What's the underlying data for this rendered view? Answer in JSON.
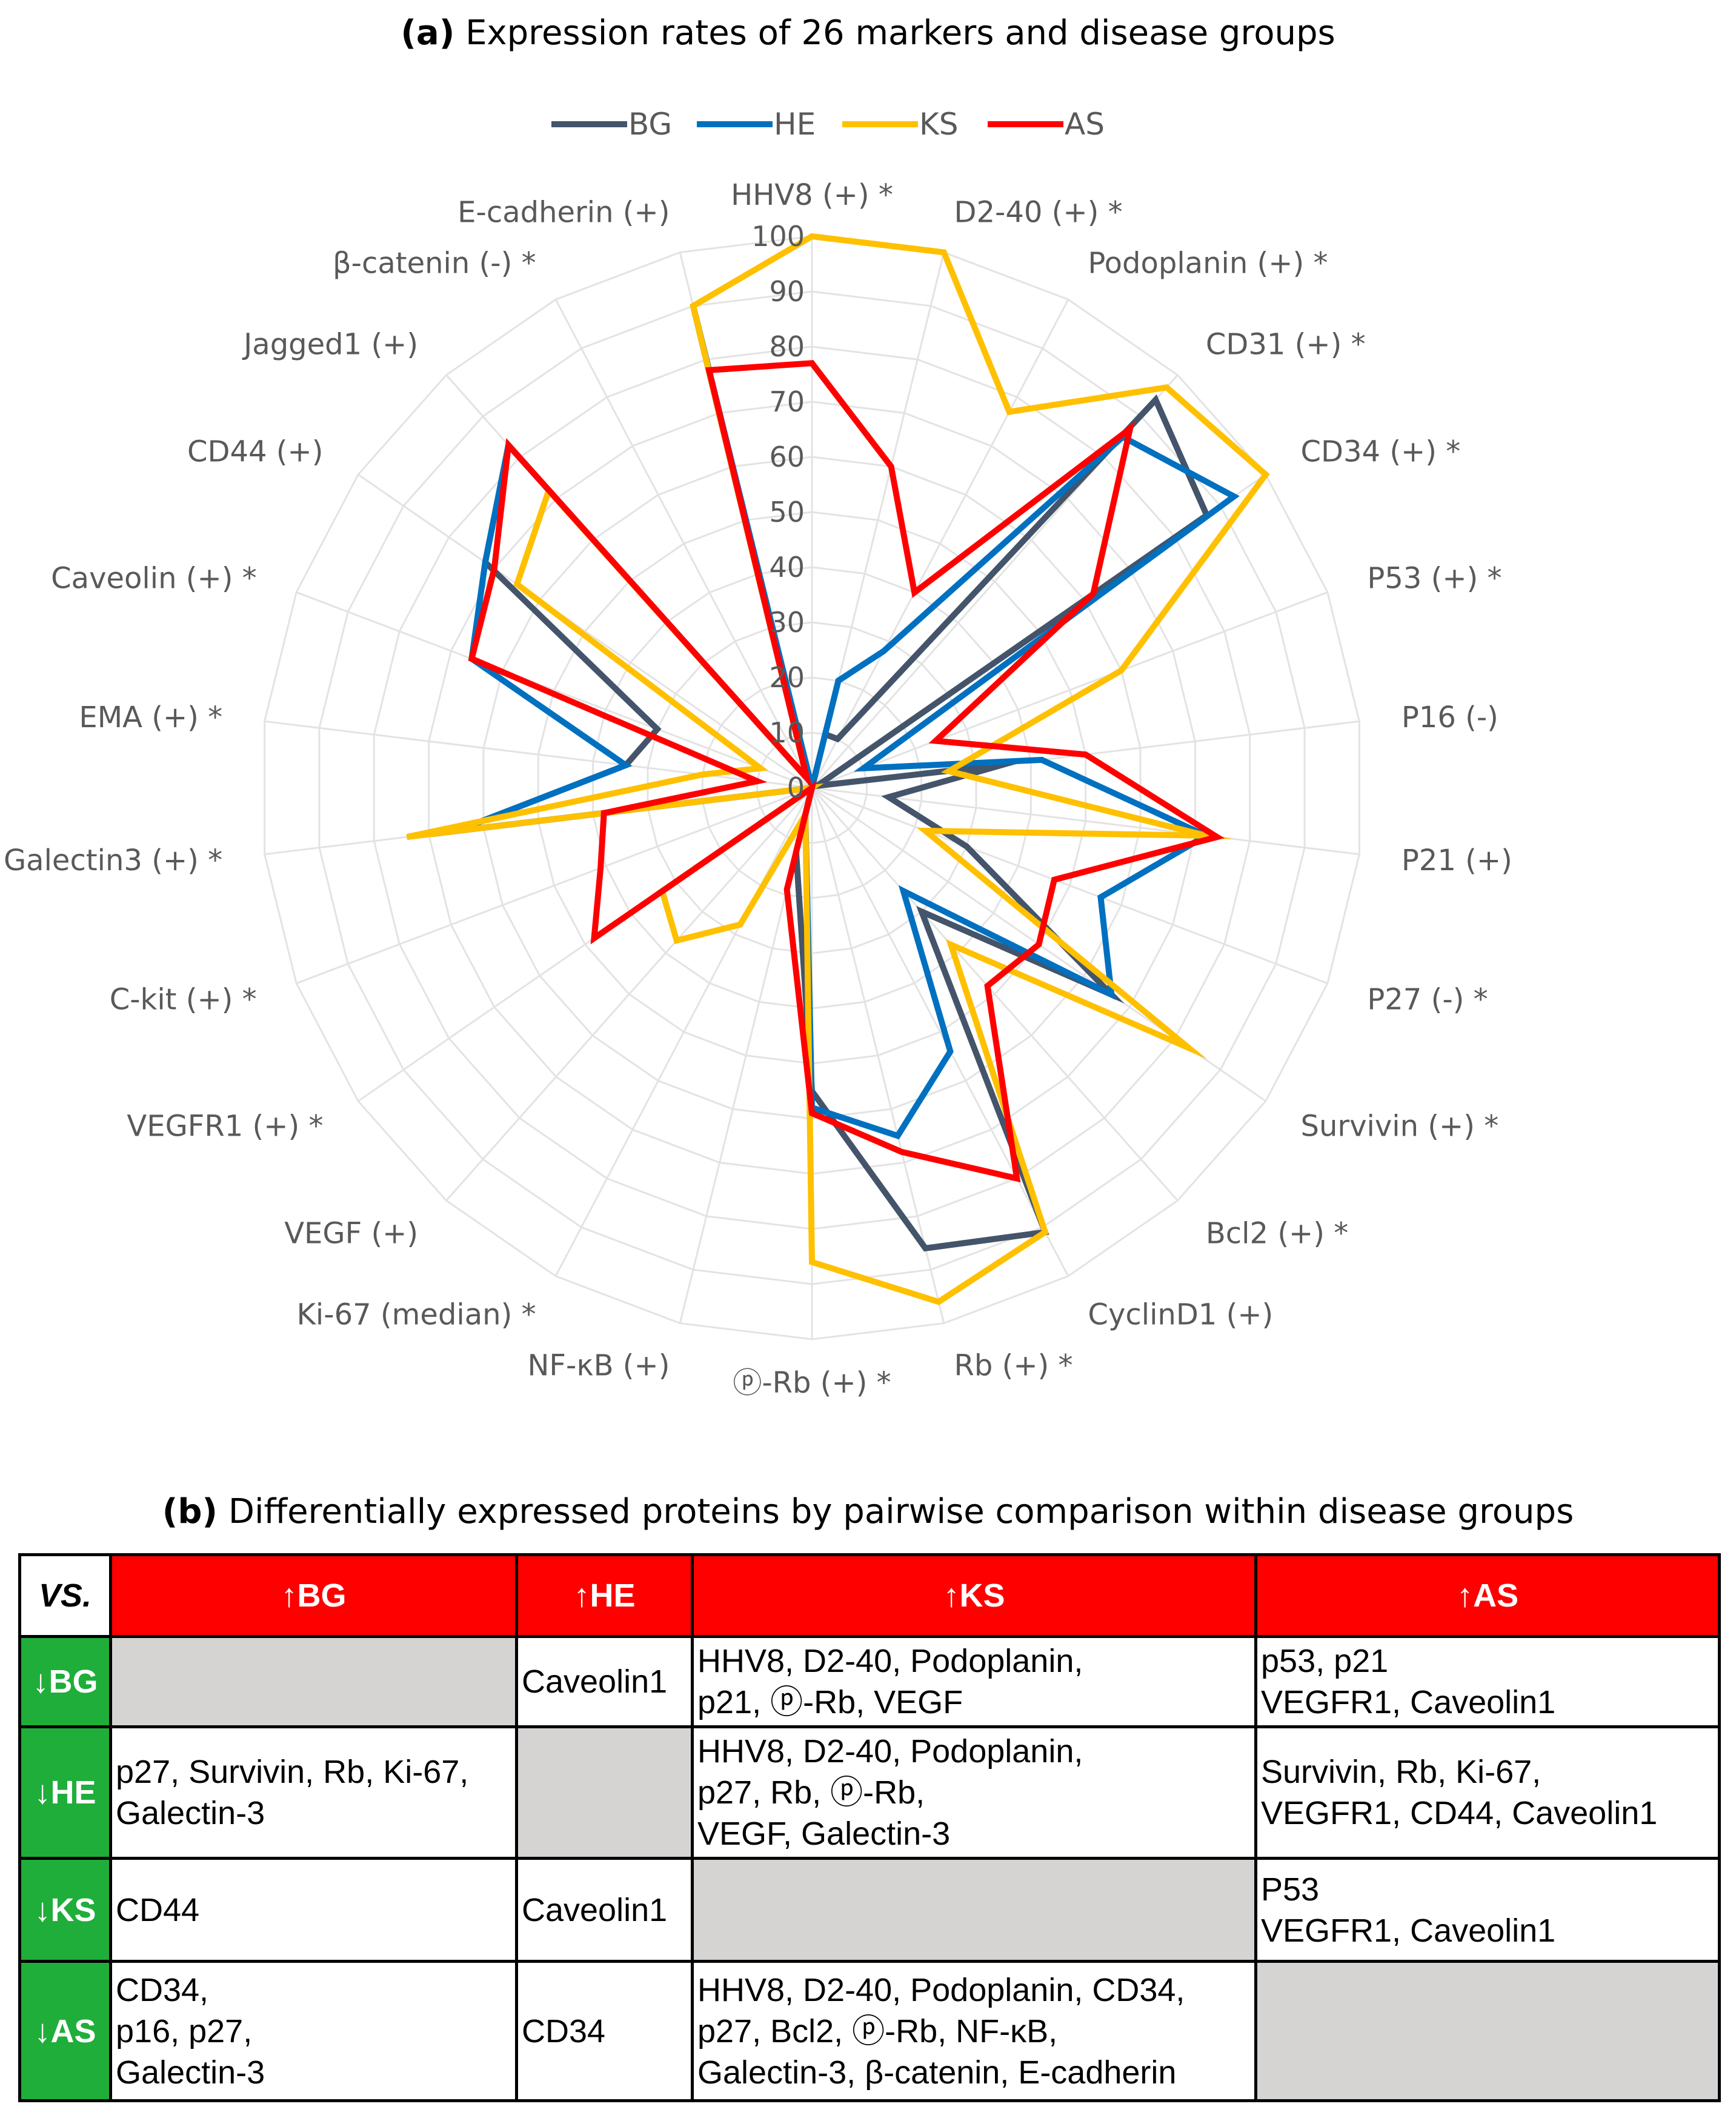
{
  "title_a": {
    "prefix": "(a)",
    "text": "Expression rates of 26 markers and disease groups"
  },
  "title_b": {
    "prefix": "(b)",
    "text": "Differentially expressed proteins by pairwise comparison within disease groups"
  },
  "chart_data": {
    "type": "radar",
    "title": "(a) Expression rates of 26 markers and disease groups",
    "categories": [
      "HHV8 (+) *",
      "D2-40 (+) *",
      "Podoplanin (+) *",
      "CD31 (+) *",
      "CD34 (+) *",
      "P53 (+) *",
      "P16 (-)",
      "P21 (+)",
      "P27 (-) *",
      "Survivin (+) *",
      "Bcl2 (+) *",
      "CyclinD1 (+)",
      "Rb (+) *",
      "ⓟ-Rb (+) *",
      "NF-κB (+)",
      "Ki-67 (median) *",
      "VEGF (+)",
      "VEGFR1 (+) *",
      "C-kit (+) *",
      "Galectin3 (+) *",
      "EMA (+) *",
      "Caveolin (+) *",
      "CD44 (+)",
      "Jagged1 (+)",
      "β-catenin (-) *",
      "E-cadherin (+)"
    ],
    "rlim": [
      0,
      100
    ],
    "rticks": [
      "0",
      "10",
      "20",
      "30",
      "40",
      "50",
      "60",
      "70",
      "80",
      "90",
      "100"
    ],
    "legend_position": "top",
    "grid": true,
    "series": [
      {
        "name": "BG",
        "color": "#44546a",
        "values": [
          0,
          10,
          10,
          94,
          87,
          1,
          35,
          14,
          30,
          66,
          30,
          91,
          86,
          55,
          12,
          0,
          0,
          34,
          0,
          65,
          34,
          30,
          72,
          83,
          2,
          90
        ]
      },
      {
        "name": "HE",
        "color": "#0070c0",
        "values": [
          0,
          20,
          28,
          85,
          93,
          10,
          42,
          72,
          56,
          66,
          25,
          54,
          65,
          58,
          5,
          0,
          0,
          24,
          0,
          65,
          34,
          66,
          72,
          83,
          2,
          90
        ]
      },
      {
        "name": "KS",
        "color": "#ffc000",
        "values": [
          100,
          100,
          77,
          97,
          100,
          60,
          25,
          72,
          22,
          83,
          38,
          91,
          96,
          86,
          5,
          28,
          37,
          33,
          0,
          74,
          20,
          10,
          65,
          72,
          2,
          90
        ]
      },
      {
        "name": "AS",
        "color": "#ff0000",
        "values": [
          77,
          60,
          40,
          87,
          62,
          24,
          50,
          74,
          47,
          50,
          48,
          80,
          68,
          59,
          19,
          0,
          0,
          48,
          41,
          38,
          10,
          66,
          70,
          83,
          2,
          78
        ]
      }
    ]
  },
  "table": {
    "corner": "VS.",
    "columns": [
      "↑BG",
      "↑HE",
      "↑KS",
      "↑AS"
    ],
    "rows": [
      {
        "label": "↓BG",
        "cells": [
          null,
          [
            "Caveolin1"
          ],
          [
            "HHV8, D2-40, Podoplanin,",
            "p21, ⓟ-Rb, VEGF"
          ],
          [
            "p53, p21",
            "VEGFR1, Caveolin1"
          ]
        ]
      },
      {
        "label": "↓HE",
        "cells": [
          [
            "p27, Survivin, Rb, Ki-67,",
            "Galectin-3"
          ],
          null,
          [
            "HHV8, D2-40, Podoplanin,",
            "p27, Rb, ⓟ-Rb,",
            "VEGF, Galectin-3"
          ],
          [
            "Survivin, Rb, Ki-67,",
            "VEGFR1, CD44, Caveolin1"
          ]
        ]
      },
      {
        "label": "↓KS",
        "cells": [
          [
            "CD44"
          ],
          [
            "Caveolin1"
          ],
          null,
          [
            "P53",
            "VEGFR1, Caveolin1"
          ]
        ]
      },
      {
        "label": "↓AS",
        "cells": [
          [
            "CD34,",
            "p16, p27,",
            "Galectin-3"
          ],
          [
            "CD34"
          ],
          [
            "HHV8, D2-40, Podoplanin, CD34,",
            "p27, Bcl2, ⓟ-Rb, NF-κB,",
            "Galectin-3, β-catenin, E-cadherin"
          ],
          null
        ]
      }
    ]
  }
}
